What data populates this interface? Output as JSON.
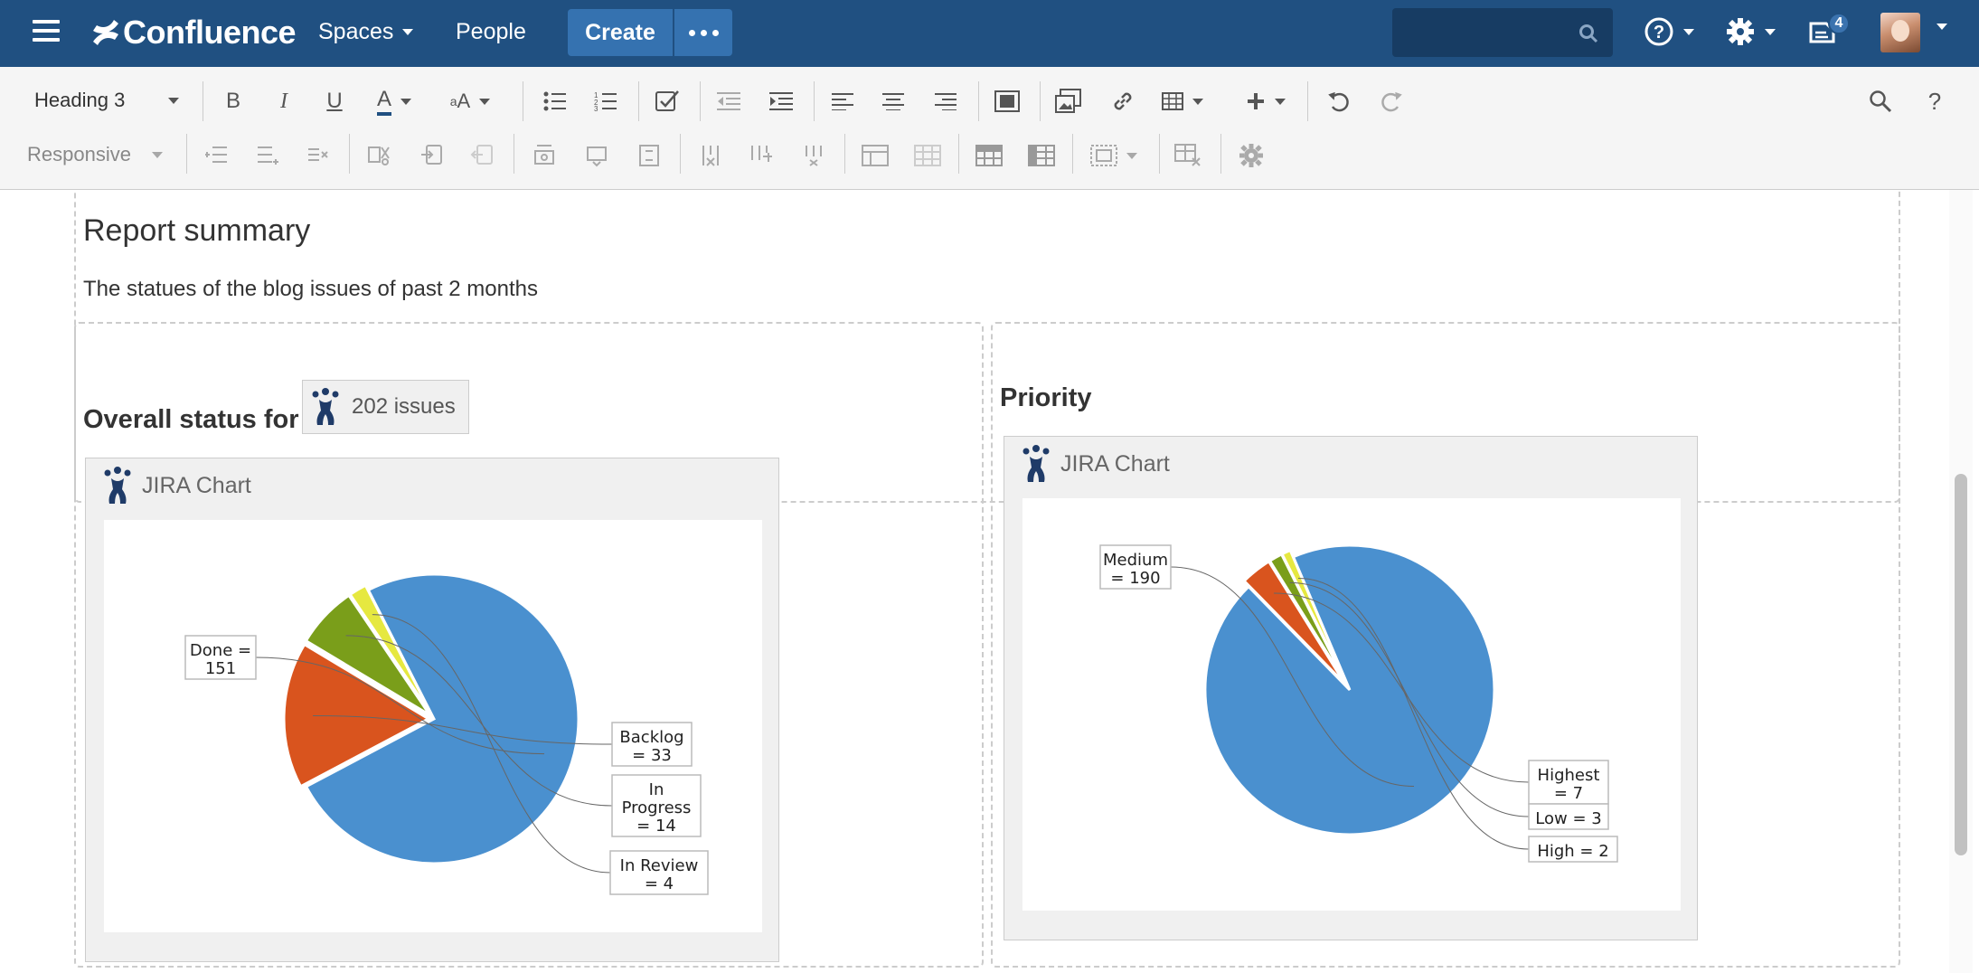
{
  "nav": {
    "app_name": "Confluence",
    "spaces_label": "Spaces",
    "people_label": "People",
    "create_label": "Create",
    "notifications_count": "4",
    "colors": {
      "nav_bg": "#205081",
      "create_bg": "#3572b0"
    }
  },
  "toolbar": {
    "style_select": "Heading 3",
    "layout_select": "Responsive",
    "row1_icons": [
      "bold-icon",
      "italic-icon",
      "underline-icon",
      "text-color-icon",
      "text-format-icon",
      "bullet-list-icon",
      "numbered-list-icon",
      "task-list-icon",
      "outdent-icon",
      "indent-icon",
      "align-left-icon",
      "align-center-icon",
      "align-right-icon",
      "page-layout-icon",
      "insert-image-icon",
      "insert-link-icon",
      "insert-table-icon",
      "insert-more-icon",
      "undo-icon",
      "redo-icon",
      "find-replace-icon",
      "help-icon"
    ],
    "row2_icons": [
      "row-insert-before-icon",
      "row-insert-after-icon",
      "row-delete-icon",
      "row-cut-icon",
      "row-copy-icon",
      "row-paste-icon",
      "col-insert-before-icon",
      "col-insert-after-icon",
      "col-delete-icon",
      "col-cut-icon",
      "col-copy-icon",
      "col-paste-icon",
      "merge-cells-icon",
      "split-cell-icon",
      "heading-row-icon",
      "heading-column-icon",
      "cell-highlight-icon",
      "delete-table-icon",
      "table-settings-icon"
    ]
  },
  "content": {
    "summary_heading": "Report summary",
    "summary_text": "The statues of the blog issues of past 2 months",
    "left_title": "Overall status for",
    "issues_macro_label": "202 issues",
    "right_title": "Priority",
    "chart_macro_label": "JIRA Chart"
  },
  "chart_data": [
    {
      "type": "pie",
      "title": "",
      "slices": [
        {
          "label": "Done",
          "value": 151,
          "color": "#4a90cf"
        },
        {
          "label": "Backlog",
          "value": 33,
          "color": "#d9541e"
        },
        {
          "label": "In Progress",
          "value": 14,
          "color": "#7a9e1a"
        },
        {
          "label": "In Review",
          "value": 4,
          "color": "#e6e840"
        }
      ],
      "labels": [
        [
          "Done =",
          "151"
        ],
        [
          "Backlog",
          "= 33"
        ],
        [
          "In",
          "Progress",
          "= 14"
        ],
        [
          "In Review",
          "= 4"
        ]
      ]
    },
    {
      "type": "pie",
      "title": "",
      "slices": [
        {
          "label": "Medium",
          "value": 190,
          "color": "#4a90cf"
        },
        {
          "label": "Highest",
          "value": 7,
          "color": "#d9541e"
        },
        {
          "label": "Low",
          "value": 3,
          "color": "#7a9e1a"
        },
        {
          "label": "High",
          "value": 2,
          "color": "#e6e840"
        }
      ],
      "labels": [
        [
          "Medium",
          "= 190"
        ],
        [
          "Highest",
          "= 7"
        ],
        [
          "Low = 3"
        ],
        [
          "High = 2"
        ]
      ]
    }
  ]
}
